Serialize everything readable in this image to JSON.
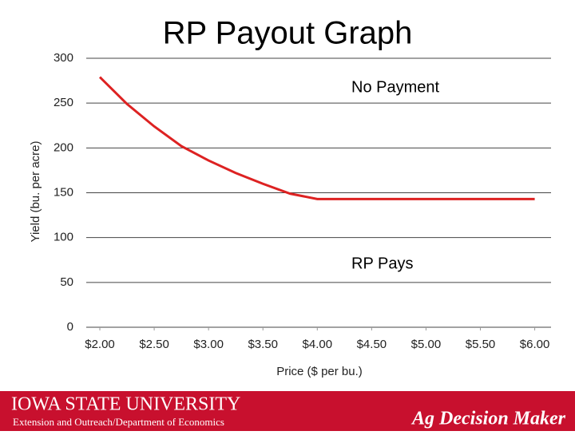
{
  "chart_data": {
    "type": "line",
    "title": "RP Payout Graph",
    "x_label": "Price ($ per bu.)",
    "y_label": "Yield (bu. per acre)",
    "annotations": [
      "No Payment",
      "RP Pays"
    ],
    "series": [
      {
        "color": "#dd2222",
        "x": [
          2.0,
          2.25,
          2.5,
          2.75,
          3.0,
          3.25,
          3.5,
          3.75,
          4.0,
          6.0
        ],
        "values": [
          279,
          249,
          224,
          202,
          186,
          172,
          160,
          149,
          143,
          143
        ]
      }
    ],
    "xlim": [
      1.875,
      6.15
    ],
    "ylim": [
      0,
      300
    ],
    "xticks": [
      {
        "value": 2,
        "label": "$2.00"
      },
      {
        "value": 2.5,
        "label": "$2.50"
      },
      {
        "value": 3,
        "label": "$3.00"
      },
      {
        "value": 3.5,
        "label": "$3.50"
      },
      {
        "value": 4,
        "label": "$4.00"
      },
      {
        "value": 4.5,
        "label": "$4.50"
      },
      {
        "value": 5,
        "label": "$5.00"
      },
      {
        "value": 5.5,
        "label": "$5.50"
      },
      {
        "value": 6,
        "label": "$6.00"
      }
    ],
    "yticks": [
      0,
      50,
      100,
      150,
      200,
      250,
      300
    ],
    "grid": true
  },
  "footer": {
    "university": "Iowa State University",
    "department": "Extension and Outreach/Department of Economics",
    "brand": "Ag Decision Maker"
  }
}
